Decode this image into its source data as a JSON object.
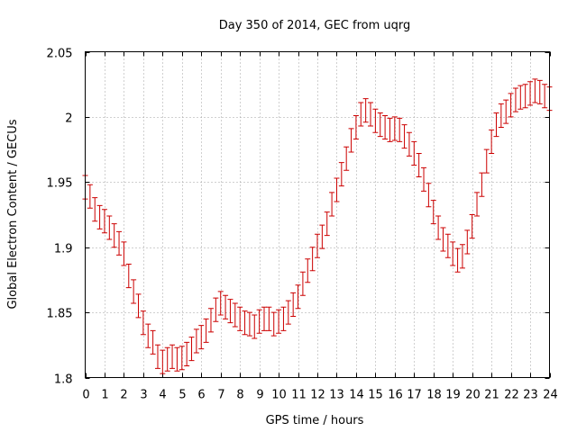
{
  "chart_data": {
    "type": "errorbar",
    "title": "Day 350 of 2014, GEC from uqrg",
    "xlabel": "GPS time / hours",
    "ylabel": "Global Electron Content / GECUs",
    "xlim": [
      0,
      24
    ],
    "ylim": [
      1.8,
      2.05
    ],
    "xticks": [
      "0",
      "1",
      "2",
      "3",
      "4",
      "5",
      "6",
      "7",
      "8",
      "9",
      "10",
      "11",
      "12",
      "13",
      "14",
      "15",
      "16",
      "17",
      "18",
      "19",
      "20",
      "21",
      "22",
      "23",
      "24"
    ],
    "yticks": [
      "1.8",
      "1.85",
      "1.9",
      "1.95",
      "2",
      "2.05"
    ],
    "grid": true,
    "color": "#cc0000",
    "error": 0.009,
    "x": [
      0,
      0.25,
      0.5,
      0.75,
      1,
      1.25,
      1.5,
      1.75,
      2,
      2.25,
      2.5,
      2.75,
      3,
      3.25,
      3.5,
      3.75,
      4,
      4.25,
      4.5,
      4.75,
      5,
      5.25,
      5.5,
      5.75,
      6,
      6.25,
      6.5,
      6.75,
      7,
      7.25,
      7.5,
      7.75,
      8,
      8.25,
      8.5,
      8.75,
      9,
      9.25,
      9.5,
      9.75,
      10,
      10.25,
      10.5,
      10.75,
      11,
      11.25,
      11.5,
      11.75,
      12,
      12.25,
      12.5,
      12.75,
      13,
      13.25,
      13.5,
      13.75,
      14,
      14.25,
      14.5,
      14.75,
      15,
      15.25,
      15.5,
      15.75,
      16,
      16.25,
      16.5,
      16.75,
      17,
      17.25,
      17.5,
      17.75,
      18,
      18.25,
      18.5,
      18.75,
      19,
      19.25,
      19.5,
      19.75,
      20,
      20.25,
      20.5,
      20.75,
      21,
      21.25,
      21.5,
      21.75,
      22,
      22.25,
      22.5,
      22.75,
      23,
      23.25,
      23.5,
      23.75,
      24
    ],
    "y": [
      1.946,
      1.939,
      1.929,
      1.923,
      1.92,
      1.915,
      1.909,
      1.903,
      1.895,
      1.878,
      1.866,
      1.855,
      1.842,
      1.832,
      1.827,
      1.816,
      1.812,
      1.814,
      1.816,
      1.814,
      1.815,
      1.818,
      1.822,
      1.828,
      1.831,
      1.836,
      1.844,
      1.852,
      1.857,
      1.854,
      1.851,
      1.848,
      1.845,
      1.842,
      1.841,
      1.839,
      1.843,
      1.845,
      1.845,
      1.841,
      1.843,
      1.845,
      1.85,
      1.856,
      1.862,
      1.872,
      1.882,
      1.891,
      1.901,
      1.908,
      1.918,
      1.933,
      1.944,
      1.956,
      1.968,
      1.982,
      1.992,
      2.002,
      2.005,
      2.002,
      1.997,
      1.994,
      1.992,
      1.99,
      1.991,
      1.99,
      1.985,
      1.979,
      1.972,
      1.963,
      1.952,
      1.94,
      1.927,
      1.915,
      1.906,
      1.901,
      1.895,
      1.89,
      1.893,
      1.904,
      1.916,
      1.933,
      1.948,
      1.966,
      1.981,
      1.994,
      2.001,
      2.004,
      2.009,
      2.013,
      2.015,
      2.016,
      2.018,
      2.02,
      2.019,
      2.016,
      2.014
    ]
  }
}
